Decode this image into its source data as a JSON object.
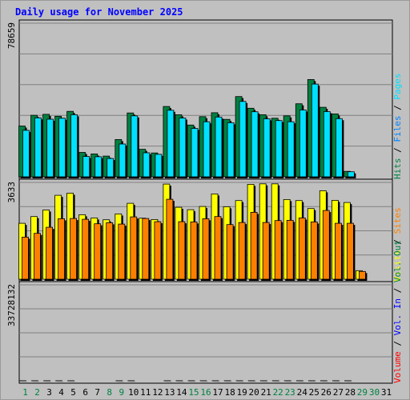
{
  "chart_data": {
    "type": "bar",
    "title": "Daily usage for November 2025",
    "categories": [
      "1",
      "2",
      "3",
      "4",
      "5",
      "6",
      "7",
      "8",
      "9",
      "10",
      "11",
      "12",
      "13",
      "14",
      "15",
      "16",
      "17",
      "18",
      "19",
      "20",
      "21",
      "22",
      "23",
      "24",
      "25",
      "26",
      "27",
      "28",
      "29",
      "30",
      "31"
    ],
    "weekend_days": [
      "1",
      "2",
      "8",
      "9",
      "15",
      "16",
      "22",
      "23",
      "29",
      "30"
    ],
    "panels": [
      {
        "id": "hits-pages-files",
        "ymax_label": "78659",
        "ymax": 78659,
        "right_label": [
          {
            "text": "Hits",
            "color": "#008040"
          },
          {
            "text": " / ",
            "color": "#000000"
          },
          {
            "text": "Files",
            "color": "#0080ff"
          },
          {
            "text": " / ",
            "color": "#000000"
          },
          {
            "text": "Pages",
            "color": "#00e0ff"
          }
        ],
        "series": [
          {
            "name": "Hits",
            "color": "#008040",
            "values": [
              26000,
              31500,
              32000,
              31000,
              33500,
              12500,
              11700,
              10600,
              19100,
              32700,
              14100,
              12200,
              36000,
              31800,
              26500,
              30800,
              32800,
              29400,
              41100,
              35100,
              31800,
              30000,
              31200,
              37400,
              49800,
              35600,
              32200,
              2800,
              0,
              0,
              0
            ]
          },
          {
            "name": "Files",
            "color": "#0080ff",
            "values": [
              23800,
              30200,
              29500,
              30000,
              31800,
              10400,
              10300,
              9400,
              16800,
              31200,
              12300,
              11500,
              34100,
              30100,
              24800,
              28200,
              30600,
              27700,
              38600,
              33300,
              29700,
              28800,
              28200,
              34200,
              47500,
              33400,
              29800,
              2600,
              0,
              0,
              0
            ]
          },
          {
            "name": "Pages",
            "color": "#00e0ff",
            "values": [
              23800,
              30200,
              29500,
              30000,
              31800,
              10400,
              10300,
              9400,
              16800,
              31200,
              12300,
              11500,
              34100,
              30100,
              24800,
              28200,
              30600,
              27700,
              38600,
              33300,
              29700,
              28800,
              28200,
              34200,
              47500,
              33400,
              29800,
              2600,
              0,
              0,
              0
            ]
          }
        ]
      },
      {
        "id": "visits-sites",
        "ymax_label": "3633",
        "ymax": 3633,
        "right_label": [
          {
            "text": "Visits",
            "color": "#ffff00"
          },
          {
            "text": " / ",
            "color": "#000000"
          },
          {
            "text": "Sites",
            "color": "#ff8000"
          }
        ],
        "series": [
          {
            "name": "Visits",
            "color": "#ffff00",
            "values": [
              2100,
              2350,
              2600,
              3150,
              3230,
              2420,
              2300,
              2230,
              2450,
              2850,
              2290,
              2240,
              3570,
              2700,
              2610,
              2730,
              3200,
              2720,
              2950,
              3560,
              3580,
              3580,
              2990,
              2950,
              2650,
              3320,
              2960,
              2880,
              320,
              0,
              0
            ]
          },
          {
            "name": "Sites",
            "color": "#ff8000",
            "values": [
              1580,
              1720,
              1950,
              2270,
              2280,
              2250,
              2080,
              2120,
              2070,
              2340,
              2280,
              2160,
              3000,
              2160,
              2150,
              2270,
              2350,
              2050,
              2130,
              2510,
              2130,
              2200,
              2210,
              2300,
              2150,
              2580,
              2100,
              2100,
              290,
              0,
              0
            ]
          }
        ]
      },
      {
        "id": "volume",
        "ymax_label": "33728132",
        "ymax": 33728132,
        "right_label": [
          {
            "text": "Volume",
            "color": "#ff0000"
          },
          {
            "text": " / ",
            "color": "#000000"
          },
          {
            "text": "Vol. In",
            "color": "#0000ff"
          },
          {
            "text": " / ",
            "color": "#000000"
          },
          {
            "text": "Vol. Out",
            "color": "#008040"
          }
        ],
        "series": [
          {
            "name": "Volume",
            "color": "#ff0000",
            "values": [
              30600,
              31300,
              31200,
              31200,
              30900,
              6800,
              6300,
              8700,
              20900,
              24400,
              7600,
              11900,
              31900,
              28800,
              29000,
              31000,
              31400,
              30300,
              33700,
              32200,
              33100,
              33100,
              30300,
              31600,
              30100,
              33100,
              31400,
              31100,
              4600,
              0,
              0
            ]
          }
        ]
      }
    ]
  }
}
